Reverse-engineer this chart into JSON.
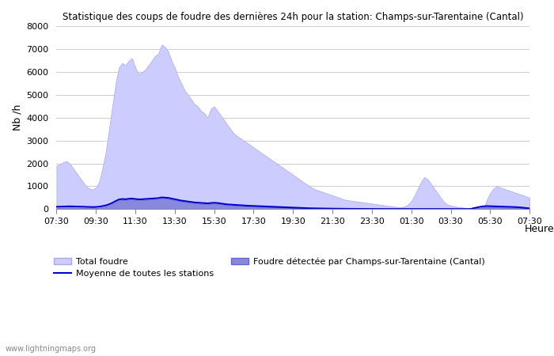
{
  "title": "Statistique des coups de foudre des dernières 24h pour la station: Champs-sur-Tarentaine (Cantal)",
  "ylabel": "Nb /h",
  "xlabel": "Heure",
  "watermark": "www.lightningmaps.org",
  "ylim": [
    0,
    8000
  ],
  "yticks": [
    0,
    1000,
    2000,
    3000,
    4000,
    5000,
    6000,
    7000,
    8000
  ],
  "xtick_labels": [
    "07:30",
    "09:30",
    "11:30",
    "13:30",
    "15:30",
    "17:30",
    "19:30",
    "21:30",
    "23:30",
    "01:30",
    "03:30",
    "05:30",
    "07:30"
  ],
  "legend": {
    "total_label": "Total foudre",
    "local_label": "Foudre détectée par Champs-sur-Tarentaine (Cantal)",
    "moyenne_label": "Moyenne de toutes les stations"
  },
  "colors": {
    "total_fill": "#ccccff",
    "total_edge": "#aaaaee",
    "local_fill": "#8888dd",
    "local_edge": "#6666cc",
    "moyenne_line": "#0000cc",
    "background": "#ffffff",
    "grid": "#cccccc",
    "text": "#000000"
  },
  "n_points": 145,
  "total_foudre": [
    1900,
    1950,
    2050,
    2100,
    2000,
    1800,
    1600,
    1400,
    1200,
    1000,
    900,
    850,
    950,
    1200,
    1800,
    2500,
    3500,
    4500,
    5500,
    6200,
    6400,
    6300,
    6500,
    6600,
    6200,
    5900,
    6000,
    6100,
    6300,
    6500,
    6700,
    6800,
    7200,
    7100,
    6900,
    6500,
    6200,
    5800,
    5500,
    5200,
    5000,
    4800,
    4600,
    4500,
    4300,
    4200,
    4000,
    4400,
    4500,
    4300,
    4100,
    3900,
    3700,
    3500,
    3300,
    3200,
    3100,
    3000,
    2900,
    2800,
    2700,
    2600,
    2500,
    2400,
    2300,
    2200,
    2100,
    2000,
    1900,
    1800,
    1700,
    1600,
    1500,
    1400,
    1300,
    1200,
    1100,
    1000,
    900,
    850,
    800,
    750,
    700,
    650,
    600,
    550,
    500,
    450,
    400,
    380,
    360,
    340,
    320,
    300,
    280,
    260,
    240,
    220,
    200,
    180,
    160,
    140,
    120,
    100,
    90,
    80,
    120,
    200,
    350,
    600,
    900,
    1200,
    1400,
    1300,
    1100,
    900,
    700,
    500,
    300,
    200,
    150,
    120,
    100,
    80,
    60,
    50,
    40,
    30,
    20,
    10,
    5,
    400,
    700,
    900,
    1000,
    950,
    900,
    850,
    800,
    750,
    700,
    650,
    600,
    550,
    500
  ],
  "local_foudre": [
    50,
    55,
    60,
    65,
    70,
    65,
    60,
    55,
    50,
    45,
    40,
    38,
    42,
    55,
    80,
    110,
    160,
    220,
    300,
    380,
    400,
    390,
    410,
    420,
    400,
    385,
    390,
    400,
    410,
    420,
    430,
    440,
    470,
    460,
    450,
    420,
    390,
    360,
    330,
    310,
    290,
    270,
    250,
    240,
    230,
    220,
    210,
    230,
    240,
    230,
    210,
    190,
    170,
    160,
    150,
    140,
    130,
    120,
    115,
    110,
    105,
    100,
    95,
    90,
    85,
    80,
    75,
    70,
    65,
    60,
    55,
    50,
    45,
    40,
    35,
    30,
    25,
    22,
    20,
    18,
    16,
    15,
    14,
    13,
    12,
    11,
    10,
    9,
    8,
    8,
    7,
    7,
    6,
    6,
    5,
    5,
    4,
    4,
    3,
    3,
    2,
    2,
    2,
    2,
    2,
    3,
    3,
    3,
    3,
    3,
    3,
    3,
    3,
    3,
    3,
    2,
    2,
    2,
    2,
    2,
    1,
    1,
    1,
    1,
    1,
    1,
    1,
    20,
    40,
    60,
    80,
    90,
    85,
    80,
    75,
    70,
    65,
    60,
    55,
    50,
    45,
    40,
    35,
    30,
    25
  ],
  "moyenne_line": [
    100,
    105,
    110,
    115,
    120,
    115,
    110,
    105,
    100,
    95,
    90,
    88,
    92,
    105,
    130,
    160,
    210,
    270,
    350,
    420,
    440,
    430,
    450,
    460,
    440,
    425,
    430,
    440,
    450,
    460,
    470,
    480,
    510,
    500,
    490,
    460,
    430,
    400,
    370,
    350,
    330,
    310,
    290,
    280,
    270,
    260,
    250,
    265,
    275,
    265,
    245,
    225,
    205,
    195,
    185,
    175,
    165,
    155,
    148,
    142,
    136,
    130,
    124,
    118,
    112,
    106,
    100,
    94,
    88,
    82,
    76,
    70,
    64,
    58,
    52,
    46,
    40,
    35,
    32,
    29,
    26,
    24,
    22,
    20,
    18,
    16,
    14,
    12,
    11,
    10,
    9,
    9,
    8,
    8,
    7,
    7,
    6,
    6,
    5,
    5,
    4,
    4,
    4,
    4,
    4,
    5,
    5,
    5,
    5,
    5,
    5,
    5,
    5,
    5,
    5,
    4,
    4,
    4,
    4,
    4,
    3,
    3,
    3,
    3,
    3,
    3,
    3,
    40,
    70,
    100,
    120,
    130,
    125,
    120,
    115,
    110,
    105,
    100,
    95,
    90,
    85,
    75,
    60,
    45,
    30
  ]
}
